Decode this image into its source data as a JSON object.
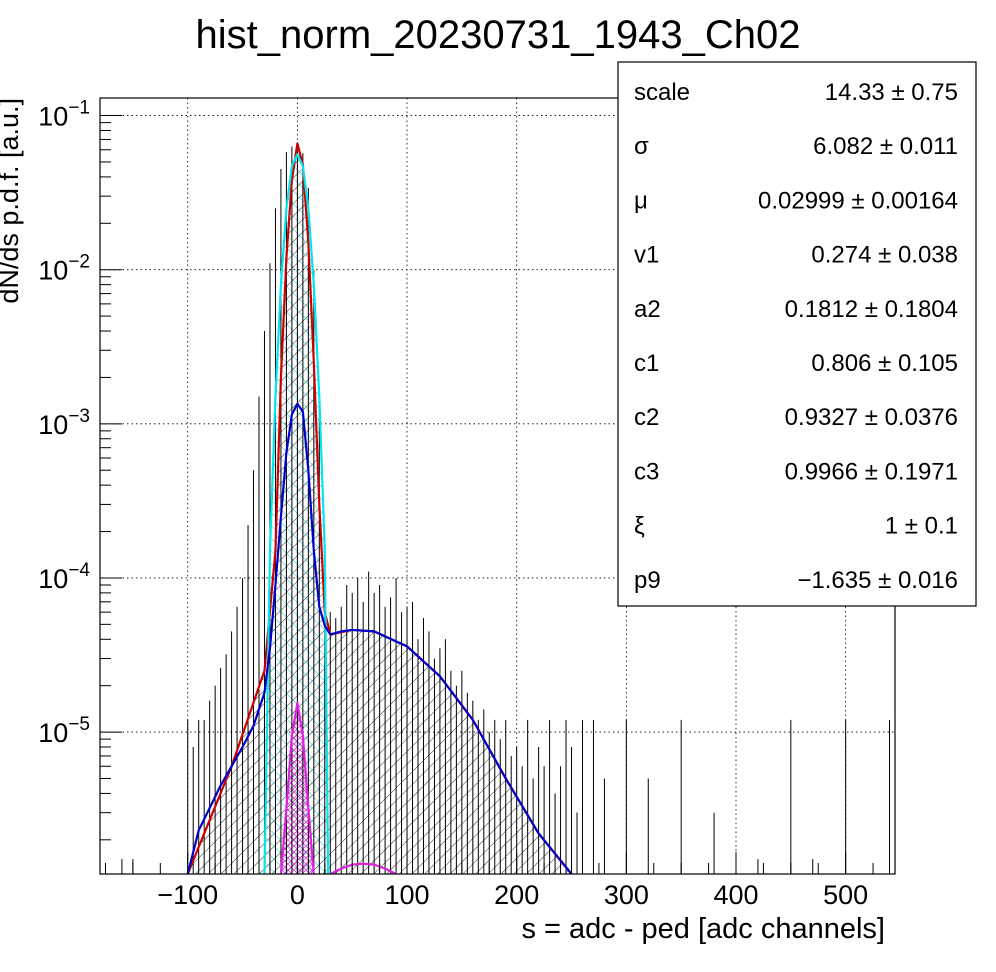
{
  "chart_data": {
    "type": "line",
    "title": "hist_norm_20230731_1943_Ch02",
    "xlabel": "s = adc - ped [adc channels]",
    "ylabel": "dN/ds p.d.f. [a.u.]",
    "xlim": [
      -180,
      545
    ],
    "ylim": [
      1.2e-06,
      0.13
    ],
    "y_scale": "log",
    "grid": true,
    "x_ticks": [
      {
        "value": -100,
        "label": "−100"
      },
      {
        "value": 0,
        "label": "0"
      },
      {
        "value": 100,
        "label": "100"
      },
      {
        "value": 200,
        "label": "200"
      },
      {
        "value": 300,
        "label": "300"
      },
      {
        "value": 400,
        "label": "400"
      },
      {
        "value": 500,
        "label": "500"
      }
    ],
    "y_ticks": [
      {
        "value": 1e-05,
        "base": "10",
        "exp": "−5"
      },
      {
        "value": 0.0001,
        "base": "10",
        "exp": "−4"
      },
      {
        "value": 0.001,
        "base": "10",
        "exp": "−3"
      },
      {
        "value": 0.01,
        "base": "10",
        "exp": "−2"
      },
      {
        "value": 0.1,
        "base": "10",
        "exp": "−1"
      }
    ],
    "series": [
      {
        "color": "#000000",
        "style": "histogram",
        "x": [
          -160,
          -150,
          -100,
          -95,
          -90,
          -85,
          -80,
          -75,
          -70,
          -65,
          -60,
          -55,
          -50,
          -45,
          -40,
          -35,
          -30,
          -25,
          -20,
          -15,
          -10,
          -5,
          0,
          5,
          10,
          15,
          20,
          25,
          30,
          35,
          40,
          45,
          50,
          55,
          60,
          65,
          70,
          75,
          80,
          85,
          90,
          95,
          100,
          105,
          110,
          115,
          120,
          125,
          130,
          135,
          140,
          145,
          150,
          155,
          160,
          165,
          170,
          175,
          180,
          185,
          190,
          195,
          200,
          205,
          210,
          215,
          220,
          225,
          230,
          235,
          240,
          245,
          250,
          255,
          260,
          270,
          280,
          300,
          320,
          350,
          380,
          420,
          450,
          470,
          500,
          540
        ],
        "y": [
          1.5e-06,
          1.5e-06,
          1.2e-05,
          8e-06,
          1.2e-05,
          1.2e-05,
          1.6e-05,
          2e-05,
          2.6e-05,
          3.2e-05,
          4.5e-05,
          6.5e-05,
          0.0001,
          0.00022,
          0.0005,
          0.0015,
          0.004,
          0.011,
          0.025,
          0.045,
          0.058,
          0.063,
          0.064,
          0.057,
          0.034,
          0.01,
          0.0015,
          0.00016,
          6e-05,
          5.5e-05,
          6.5e-05,
          9e-05,
          8e-05,
          0.0001,
          7e-05,
          0.00011,
          8e-05,
          9e-05,
          6.5e-05,
          7.5e-05,
          0.0001,
          6e-05,
          6.5e-05,
          7e-05,
          4e-05,
          5.5e-05,
          4.5e-05,
          3e-05,
          3.5e-05,
          4e-05,
          2.5e-05,
          2e-05,
          2.5e-05,
          1.8e-05,
          1.6e-05,
          1.2e-05,
          1.4e-05,
          1e-05,
          1.2e-05,
          9e-06,
          1.2e-05,
          7e-06,
          8e-06,
          6e-06,
          1.2e-05,
          5e-06,
          8e-06,
          6e-06,
          1.2e-05,
          4e-06,
          6e-06,
          1.2e-05,
          8e-06,
          3e-06,
          1.2e-05,
          1.2e-05,
          5e-06,
          1.2e-05,
          5e-06,
          1.2e-05,
          3e-06,
          1.5e-06,
          1.2e-05,
          1.5e-06,
          1.2e-05,
          1.2e-05
        ]
      },
      {
        "color": "#cc0000",
        "style": "line",
        "x": [
          -100,
          -60,
          -30,
          -20,
          -15,
          -10,
          -5,
          0,
          5,
          10,
          15,
          20,
          25,
          30,
          50,
          70,
          100,
          130,
          160,
          190,
          220,
          250
        ],
        "y": [
          1.2e-06,
          6e-06,
          2.5e-05,
          0.00015,
          0.002,
          0.012,
          0.038,
          0.066,
          0.048,
          0.015,
          0.0025,
          0.0003,
          6e-05,
          4.3e-05,
          4.6e-05,
          4.5e-05,
          3.6e-05,
          2.3e-05,
          1.2e-05,
          5e-06,
          2.2e-06,
          1.2e-06
        ]
      },
      {
        "color": "#00e5ee",
        "style": "line",
        "x": [
          -30,
          -25,
          -20,
          -15,
          -10,
          -5,
          0,
          5,
          10,
          15,
          20,
          25,
          28
        ],
        "y": [
          1.2e-06,
          0.00015,
          0.0015,
          0.008,
          0.025,
          0.047,
          0.056,
          0.047,
          0.025,
          0.008,
          0.0015,
          0.00015,
          1.2e-06
        ]
      },
      {
        "color": "#0000cc",
        "style": "line",
        "x": [
          -100,
          -90,
          -70,
          -50,
          -40,
          -30,
          -25,
          -20,
          -15,
          -10,
          -5,
          0,
          5,
          10,
          15,
          20,
          25,
          30,
          40,
          50,
          70,
          100,
          130,
          160,
          190,
          220,
          250
        ],
        "y": [
          1.2e-06,
          2.3e-06,
          4.5e-06,
          8e-06,
          1.1e-05,
          1.8e-05,
          3.5e-05,
          9e-05,
          0.00025,
          0.00065,
          0.00115,
          0.00135,
          0.0012,
          0.0005,
          0.00015,
          6.5e-05,
          4.9e-05,
          4.3e-05,
          4.5e-05,
          4.6e-05,
          4.5e-05,
          3.6e-05,
          2.3e-05,
          1.2e-05,
          5e-06,
          2.2e-06,
          1.2e-06
        ]
      },
      {
        "color": "#dd22dd",
        "style": "line",
        "x": [
          -15,
          -10,
          -5,
          0,
          5,
          10,
          15
        ],
        "y": [
          1.2e-06,
          3.2e-06,
          9.5e-06,
          1.55e-05,
          9.5e-06,
          3.2e-06,
          1.2e-06
        ]
      },
      {
        "color": "#dd22dd",
        "style": "line",
        "x": [
          30,
          40,
          50,
          60,
          70,
          80,
          90
        ],
        "y": [
          1.2e-06,
          1.3e-06,
          1.38e-06,
          1.4e-06,
          1.38e-06,
          1.3e-06,
          1.2e-06
        ]
      }
    ]
  },
  "stats": {
    "rows": [
      {
        "name": "scale",
        "value": "14.33 ± 0.75"
      },
      {
        "name": "σ",
        "value": "6.082 ± 0.011"
      },
      {
        "name": "μ",
        "value": "0.02999 ± 0.00164"
      },
      {
        "name": "v1",
        "value": "0.274 ± 0.038"
      },
      {
        "name": "a2",
        "value": "0.1812 ± 0.1804"
      },
      {
        "name": "c1",
        "value": "0.806 ± 0.105"
      },
      {
        "name": "c2",
        "value": "0.9327 ± 0.0376"
      },
      {
        "name": "c3",
        "value": "0.9966 ± 0.1971"
      },
      {
        "name": "ξ",
        "value": "1 ± 0.1"
      },
      {
        "name": "p9",
        "value": "−1.635 ± 0.016"
      }
    ]
  }
}
